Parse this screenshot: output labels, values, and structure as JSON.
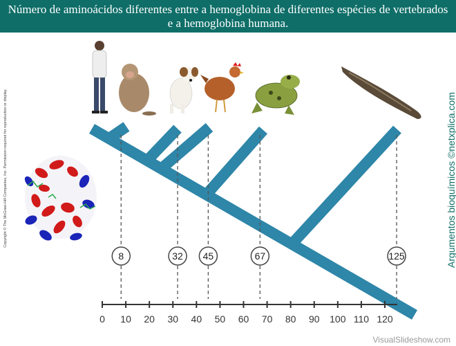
{
  "title": "Número de aminoácidos diferentes entre a hemoglobina de diferentes espécies de vertebrados e a hemoglobina humana.",
  "copyright": "Copyright © The McGraw-Hill Companies, Inc. Permission required for reproduction or display.",
  "side_credit": "Argumentos bioquímicos ©netxplica.com",
  "watermark": "VisualSlideshow.com",
  "organisms": [
    {
      "name": "human-figure"
    },
    {
      "name": "monkey-figure"
    },
    {
      "name": "dog-figure"
    },
    {
      "name": "chicken-figure"
    },
    {
      "name": "frog-figure"
    },
    {
      "name": "lamprey-figure"
    }
  ],
  "colors": {
    "branch": "#2e86a8",
    "title_bg": "#0f6e68",
    "helix_red": "#d11a1a",
    "helix_blue": "#1a24b8"
  },
  "chart_data": {
    "type": "dendrogram",
    "axis": {
      "min": 0,
      "max": 120,
      "ticks": [
        "0",
        "10",
        "20",
        "30",
        "40",
        "50",
        "60",
        "70",
        "80",
        "90",
        "100",
        "110",
        "120"
      ]
    },
    "differences": [
      {
        "value": 8,
        "label": "8"
      },
      {
        "value": 32,
        "label": "32"
      },
      {
        "value": 45,
        "label": "45"
      },
      {
        "value": 67,
        "label": "67"
      },
      {
        "value": 125,
        "label": "125"
      }
    ]
  }
}
